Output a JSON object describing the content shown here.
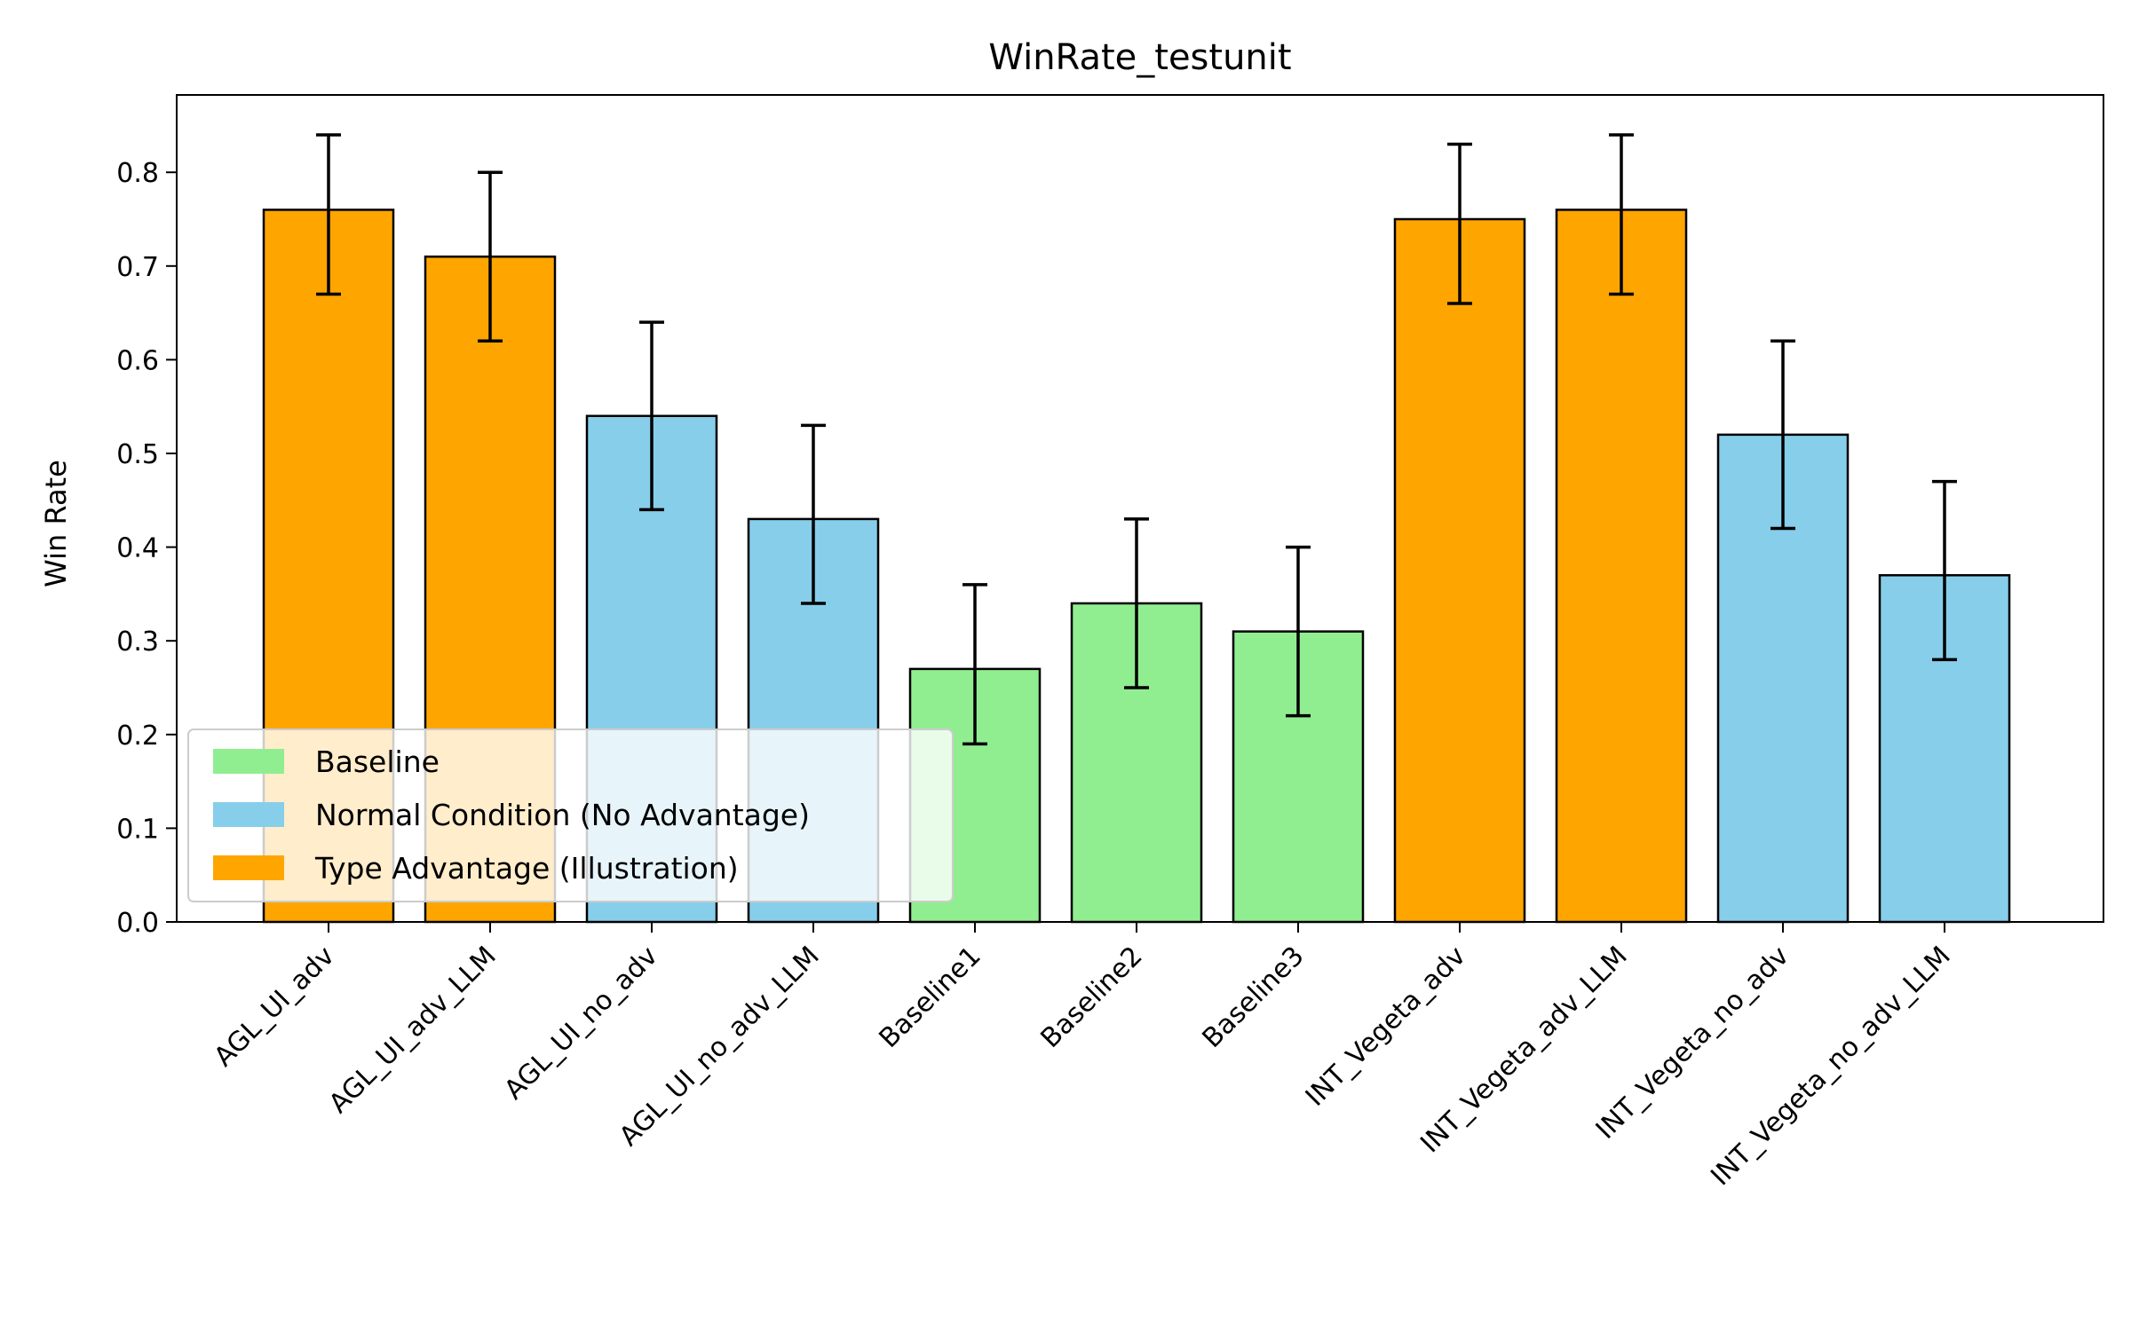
{
  "chart_data": {
    "type": "bar",
    "title": "WinRate_testunit",
    "xlabel": "",
    "ylabel": "Win Rate",
    "ylim": [
      0,
      0.88
    ],
    "yticks": [
      "0.0",
      "0.1",
      "0.2",
      "0.3",
      "0.4",
      "0.5",
      "0.6",
      "0.7",
      "0.8"
    ],
    "categories": [
      "AGL_UI_adv",
      "AGL_UI_adv_LLM",
      "AGL_UI_no_adv",
      "AGL_UI_no_adv_LLM",
      "Baseline1",
      "Baseline2",
      "Baseline3",
      "INT_Vegeta_adv",
      "INT_Vegeta_adv_LLM",
      "INT_Vegeta_no_adv",
      "INT_Vegeta_no_adv_LLM"
    ],
    "values": [
      0.76,
      0.71,
      0.54,
      0.43,
      0.27,
      0.34,
      0.31,
      0.75,
      0.76,
      0.52,
      0.37
    ],
    "error_low": [
      0.67,
      0.62,
      0.44,
      0.34,
      0.19,
      0.25,
      0.22,
      0.66,
      0.67,
      0.42,
      0.28
    ],
    "error_high": [
      0.84,
      0.8,
      0.64,
      0.53,
      0.36,
      0.43,
      0.4,
      0.83,
      0.84,
      0.62,
      0.47
    ],
    "groups": [
      "type_advantage",
      "type_advantage",
      "normal",
      "normal",
      "baseline",
      "baseline",
      "baseline",
      "type_advantage",
      "type_advantage",
      "normal",
      "normal"
    ],
    "legend": {
      "placement": "lower-left",
      "entries": [
        {
          "key": "baseline",
          "label": "Baseline",
          "color": "#90EE90"
        },
        {
          "key": "normal",
          "label": "Normal Condition (No Advantage)",
          "color": "#87CEEB"
        },
        {
          "key": "type_advantage",
          "label": "Type Advantage (Illustration)",
          "color": "#FFA500"
        }
      ]
    },
    "grid": false
  }
}
